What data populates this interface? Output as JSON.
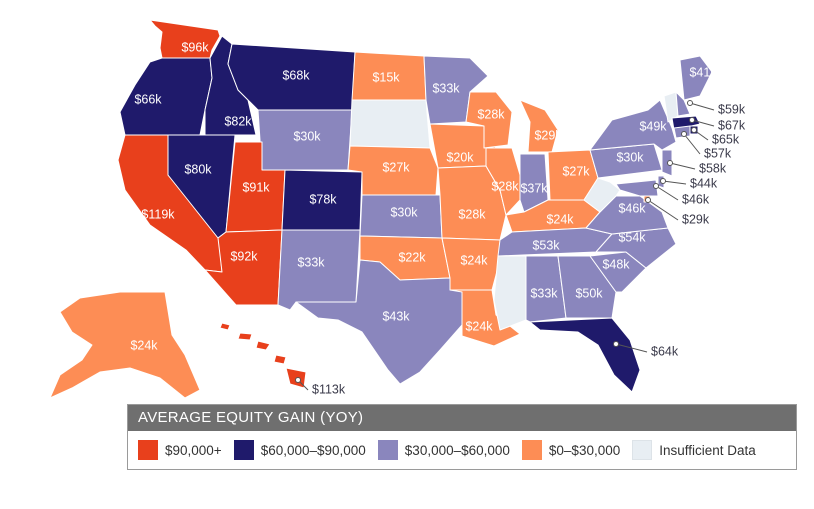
{
  "legend": {
    "title": "AVERAGE EQUITY GAIN (YOY)",
    "items": [
      {
        "label": "$90,000+",
        "color": "#e8401c"
      },
      {
        "label": "$60,000–$90,000",
        "color": "#1f1a6b"
      },
      {
        "label": "$30,000–$60,000",
        "color": "#8a86bd"
      },
      {
        "label": "$0–$30,000",
        "color": "#fd8d55"
      },
      {
        "label": "Insufficient Data",
        "color": "#e8eef3"
      }
    ]
  },
  "states": [
    {
      "code": "WA",
      "value": "$96k",
      "tier": 0
    },
    {
      "code": "OR",
      "value": "$66k",
      "tier": 1
    },
    {
      "code": "CA",
      "value": "$119k",
      "tier": 0
    },
    {
      "code": "ID",
      "value": "$82k",
      "tier": 1
    },
    {
      "code": "NV",
      "value": "$80k",
      "tier": 1
    },
    {
      "code": "MT",
      "value": "$68k",
      "tier": 1
    },
    {
      "code": "WY",
      "value": "$30k",
      "tier": 2
    },
    {
      "code": "UT",
      "value": "$91k",
      "tier": 0
    },
    {
      "code": "AZ",
      "value": "$92k",
      "tier": 0
    },
    {
      "code": "CO",
      "value": "$78k",
      "tier": 1
    },
    {
      "code": "NM",
      "value": "$33k",
      "tier": 2
    },
    {
      "code": "ND",
      "value": "$15k",
      "tier": 3
    },
    {
      "code": "SD",
      "value": "",
      "tier": 4
    },
    {
      "code": "NE",
      "value": "$27k",
      "tier": 3
    },
    {
      "code": "KS",
      "value": "$30k",
      "tier": 2
    },
    {
      "code": "OK",
      "value": "$22k",
      "tier": 3
    },
    {
      "code": "TX",
      "value": "$43k",
      "tier": 2
    },
    {
      "code": "MN",
      "value": "$33k",
      "tier": 2
    },
    {
      "code": "IA",
      "value": "$20k",
      "tier": 3
    },
    {
      "code": "MO",
      "value": "$28k",
      "tier": 3
    },
    {
      "code": "AR",
      "value": "$24k",
      "tier": 3
    },
    {
      "code": "LA",
      "value": "$24k",
      "tier": 3
    },
    {
      "code": "WI",
      "value": "$28k",
      "tier": 3
    },
    {
      "code": "IL",
      "value": "$28k",
      "tier": 3
    },
    {
      "code": "MI",
      "value": "$29k",
      "tier": 3
    },
    {
      "code": "IN",
      "value": "$37k",
      "tier": 2
    },
    {
      "code": "OH",
      "value": "$27k",
      "tier": 3
    },
    {
      "code": "KY",
      "value": "$24k",
      "tier": 3
    },
    {
      "code": "TN",
      "value": "$53k",
      "tier": 2
    },
    {
      "code": "MS",
      "value": "",
      "tier": 4
    },
    {
      "code": "AL",
      "value": "$33k",
      "tier": 2
    },
    {
      "code": "GA",
      "value": "$50k",
      "tier": 2
    },
    {
      "code": "FL",
      "value": "$64k",
      "tier": 1
    },
    {
      "code": "SC",
      "value": "$48k",
      "tier": 2
    },
    {
      "code": "NC",
      "value": "$54k",
      "tier": 2
    },
    {
      "code": "VA",
      "value": "$46k",
      "tier": 2
    },
    {
      "code": "WV",
      "value": "",
      "tier": 4
    },
    {
      "code": "PA",
      "value": "$30k",
      "tier": 2
    },
    {
      "code": "NY",
      "value": "$49k",
      "tier": 2
    },
    {
      "code": "ME",
      "value": "$41k",
      "tier": 2
    },
    {
      "code": "VT",
      "value": "",
      "tier": 4
    },
    {
      "code": "NH",
      "value": "$59k",
      "tier": 2
    },
    {
      "code": "MA",
      "value": "$67k",
      "tier": 1
    },
    {
      "code": "RI",
      "value": "$65k",
      "tier": 1
    },
    {
      "code": "CT",
      "value": "$57k",
      "tier": 2
    },
    {
      "code": "NJ",
      "value": "$58k",
      "tier": 2
    },
    {
      "code": "DE",
      "value": "$44k",
      "tier": 2
    },
    {
      "code": "MD",
      "value": "$46k",
      "tier": 2
    },
    {
      "code": "DC",
      "value": "$29k",
      "tier": 3
    },
    {
      "code": "AK",
      "value": "$24k",
      "tier": 3
    },
    {
      "code": "HI",
      "value": "$113k",
      "tier": 0
    }
  ]
}
